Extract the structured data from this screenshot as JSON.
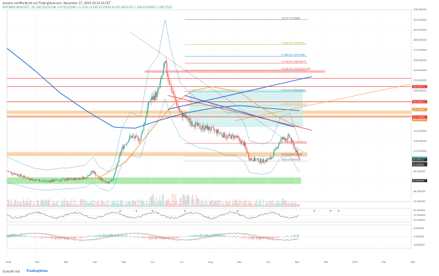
{
  "header": {
    "line1": "koeslas veröffentlicht auf TradingView.com, November 27, 2019 10:23:20 CET",
    "line2": "BITFINEX:BSVUSDT, 1D  100.552223  ▼ -3.074222566 (-3.12%)  O:104.6135454  H:105.0872471  L:100.0350945  C:100.5522  "
  },
  "colors": {
    "up": "#26a69a",
    "down": "#ef5350",
    "ma_blue": "#1e6fd0",
    "ma_orange": "#f39c3d",
    "bb": "#4a90c8",
    "cloud": "#c7ecec",
    "band_orange": "#f7c58b",
    "band_green": "#8ee38e",
    "band_red": "#f4a2a2",
    "red_line": "#e53935",
    "trend_blue": "#2e5cd6"
  },
  "axis": {
    "months": [
      "2019",
      "Feb",
      "Mar",
      "Apr",
      "May",
      "Jun",
      "Jul",
      "Aug",
      "Sep",
      "Oct",
      "Nov",
      "Dec",
      "2020",
      "Feb",
      "Mar"
    ],
    "price_ticks": [
      "336.000000",
      "320.000000",
      "304.000000",
      "288.000000",
      "272.000000",
      "256.000000",
      "240.000000",
      "224.000000",
      "208.000000",
      "192.000000",
      "176.000000",
      "160.000000",
      "144.000000",
      "128.000000",
      "112.000000",
      "96.000000",
      "80.000000",
      "64.000000",
      "48.000000",
      "32.000000",
      "0.000000"
    ],
    "rsi_ticks": [
      "81.000000",
      "72.000000",
      "54.000000"
    ],
    "macd_ticks": [
      "8.000000",
      "0.000000",
      "-8.000000"
    ]
  },
  "price_tags": [
    {
      "text": "191.999997",
      "y": 0.0,
      "color": "#f39c3d"
    },
    {
      "text": "186.259271",
      "color": "#e53935"
    },
    {
      "text": "166.668977",
      "color": "#e53935"
    },
    {
      "text": "162.299791",
      "color": "#f39c3d"
    },
    {
      "text": "152.708081",
      "color": "#e53935"
    },
    {
      "text": "100.552223",
      "color": "#26a69a"
    },
    {
      "text": "98.149111",
      "color": "#333333"
    },
    {
      "text": "92.240011",
      "color": "#333333"
    },
    {
      "text": "90.000000",
      "color": "#333333"
    },
    {
      "text": "64.980190",
      "color": "#333333"
    }
  ],
  "fib_labels": [
    {
      "text": "1(273.771/1680)",
      "color": "#555555"
    },
    {
      "text": "0.888(262.153/8976)",
      "color": "#a0b030"
    },
    {
      "text": "0.786(251.0/079308)",
      "color": "#2e7bd6"
    },
    {
      "text": "0.714(231.048/76077)",
      "color": "#e53935"
    },
    {
      "text": "0.618(220.134/4/45/7706)",
      "color": "#e53935"
    },
    {
      "text": "0.5(205.12/88/8/6/68)",
      "color": "#26a69a"
    },
    {
      "text": "0.382(184.004/0/3/5/6)",
      "color": "#f39c3d"
    },
    {
      "text": "0.236(124.1/56/69/34)",
      "color": "#e53935"
    },
    {
      "text": "0(103.6/9/123/7/6)",
      "color": "#555555"
    },
    {
      "text": "0(96.5/70/57/7/4)",
      "color": "#555555"
    }
  ],
  "footer": {
    "brand": "TradingView",
    "left": "Erstellt mit"
  },
  "chart_data": {
    "type": "candlestick",
    "symbol": "BITFINEX:BSVUSDT",
    "interval": "1D",
    "ylim": [
      32,
      336
    ],
    "moving_averages": [
      "blue",
      "orange"
    ],
    "indicators": [
      "Bollinger Bands",
      "RSI",
      "MACD"
    ],
    "close_path": [
      [
        "2019-01-01",
        80
      ],
      [
        "2019-01-10",
        76
      ],
      [
        "2019-01-20",
        71
      ],
      [
        "2019-02-01",
        66
      ],
      [
        "2019-02-15",
        64
      ],
      [
        "2019-03-01",
        66
      ],
      [
        "2019-03-15",
        67
      ],
      [
        "2019-03-30",
        70
      ],
      [
        "2019-04-08",
        80
      ],
      [
        "2019-04-15",
        68
      ],
      [
        "2019-04-25",
        62
      ],
      [
        "2019-05-01",
        70
      ],
      [
        "2019-05-10",
        115
      ],
      [
        "2019-05-20",
        135
      ],
      [
        "2019-05-31",
        130
      ],
      [
        "2019-06-10",
        190
      ],
      [
        "2019-06-20",
        205
      ],
      [
        "2019-06-28",
        250
      ],
      [
        "2019-07-05",
        210
      ],
      [
        "2019-07-15",
        172
      ],
      [
        "2019-07-25",
        160
      ],
      [
        "2019-08-05",
        150
      ],
      [
        "2019-08-15",
        148
      ],
      [
        "2019-08-25",
        143
      ],
      [
        "2019-09-05",
        135
      ],
      [
        "2019-09-15",
        135
      ],
      [
        "2019-09-25",
        122
      ],
      [
        "2019-10-01",
        100
      ],
      [
        "2019-10-15",
        96
      ],
      [
        "2019-10-25",
        100
      ],
      [
        "2019-11-05",
        130
      ],
      [
        "2019-11-15",
        134
      ],
      [
        "2019-11-26",
        100.55
      ]
    ]
  }
}
